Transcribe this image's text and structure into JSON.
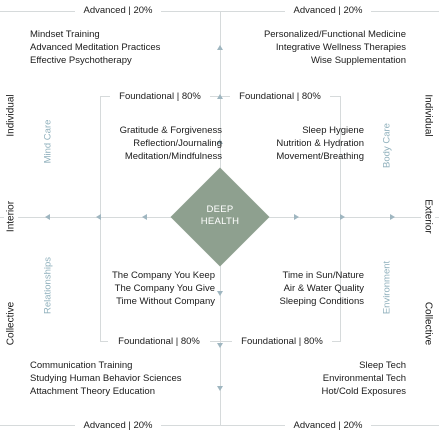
{
  "advanced_label": "Advanced | 20%",
  "foundational_label": "Foundational | 80%",
  "center": {
    "line1": "DEEP",
    "line2": "HEALTH"
  },
  "axes": {
    "left_top": "Individual",
    "left_bottom": "Collective",
    "right_top": "Individual",
    "right_bottom": "Collective",
    "left_middle": "Interior",
    "right_middle": "Exterior"
  },
  "quadrants": {
    "mind_care": "Mind Care",
    "body_care": "Body Care",
    "relationships": "Relationships",
    "environment": "Environment"
  },
  "top_left_advanced": [
    "Mindset Training",
    "Advanced Meditation Practices",
    "Effective Psychotherapy"
  ],
  "top_right_advanced": [
    "Personalized/Functional Medicine",
    "Integrative Wellness Therapies",
    "Wise Supplementation"
  ],
  "top_left_foundational": [
    "Gratitude & Forgiveness",
    "Reflection/Journaling",
    "Meditation/Mindfulness"
  ],
  "top_right_foundational": [
    "Sleep Hygiene",
    "Nutrition & Hydration",
    "Movement/Breathing"
  ],
  "bottom_left_foundational": [
    "The Company You Keep",
    "The Company You Give",
    "Time Without Company"
  ],
  "bottom_right_foundational": [
    "Time in Sun/Nature",
    "Air & Water Quality",
    "Sleeping Conditions"
  ],
  "bottom_left_advanced": [
    "Communication Training",
    "Studying Human Behavior Sciences",
    "Attachment Theory Education"
  ],
  "bottom_right_advanced": [
    "Sleep Tech",
    "Environmental Tech",
    "Hot/Cold Exposures"
  ],
  "colors": {
    "diamond": "#8ea08f",
    "lines": "#d6dadb",
    "arrows": "#9fb6c0",
    "quadrant_labels": "#8fb0bc"
  }
}
